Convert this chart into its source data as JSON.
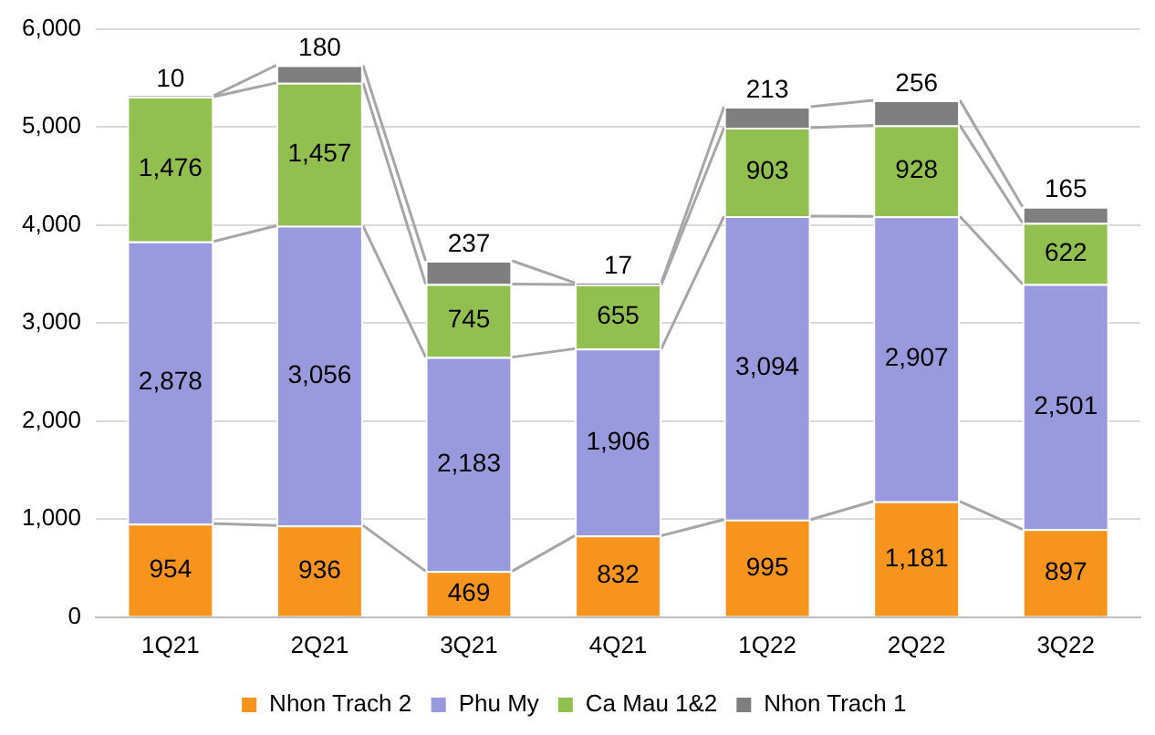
{
  "chart_data": {
    "type": "bar",
    "stacked": true,
    "categories": [
      "1Q21",
      "2Q21",
      "3Q21",
      "4Q21",
      "1Q22",
      "2Q22",
      "3Q22"
    ],
    "series": [
      {
        "name": "Nhon Trach 2",
        "color": "#f7941d",
        "values": [
          954,
          936,
          469,
          832,
          995,
          1181,
          897
        ],
        "value_labels": [
          "954",
          "936",
          "469",
          "832",
          "995",
          "1,181",
          "897"
        ]
      },
      {
        "name": "Phu My",
        "color": "#9999dd",
        "values": [
          2878,
          3056,
          2183,
          1906,
          3094,
          2907,
          2501
        ],
        "value_labels": [
          "2,878",
          "3,056",
          "2,183",
          "1,906",
          "3,094",
          "2,907",
          "2,501"
        ]
      },
      {
        "name": "Ca Mau 1&2",
        "color": "#92c050",
        "values": [
          1476,
          1457,
          745,
          655,
          903,
          928,
          622
        ],
        "value_labels": [
          "1,476",
          "1,457",
          "745",
          "655",
          "903",
          "928",
          "622"
        ]
      },
      {
        "name": "Nhon Trach 1",
        "color": "#7f7f7f",
        "values": [
          10,
          180,
          237,
          17,
          213,
          256,
          165
        ],
        "value_labels": [
          "10",
          "180",
          "237",
          "17",
          "213",
          "256",
          "165"
        ]
      }
    ],
    "ylim": [
      0,
      6000
    ],
    "yticks": [
      {
        "value": 0,
        "label": "0"
      },
      {
        "value": 1000,
        "label": "1,000"
      },
      {
        "value": 2000,
        "label": "2,000"
      },
      {
        "value": 3000,
        "label": "3,000"
      },
      {
        "value": 4000,
        "label": "4,000"
      },
      {
        "value": 5000,
        "label": "5,000"
      },
      {
        "value": 6000,
        "label": "6,000"
      }
    ],
    "grid": "y",
    "legend": "bottom"
  }
}
